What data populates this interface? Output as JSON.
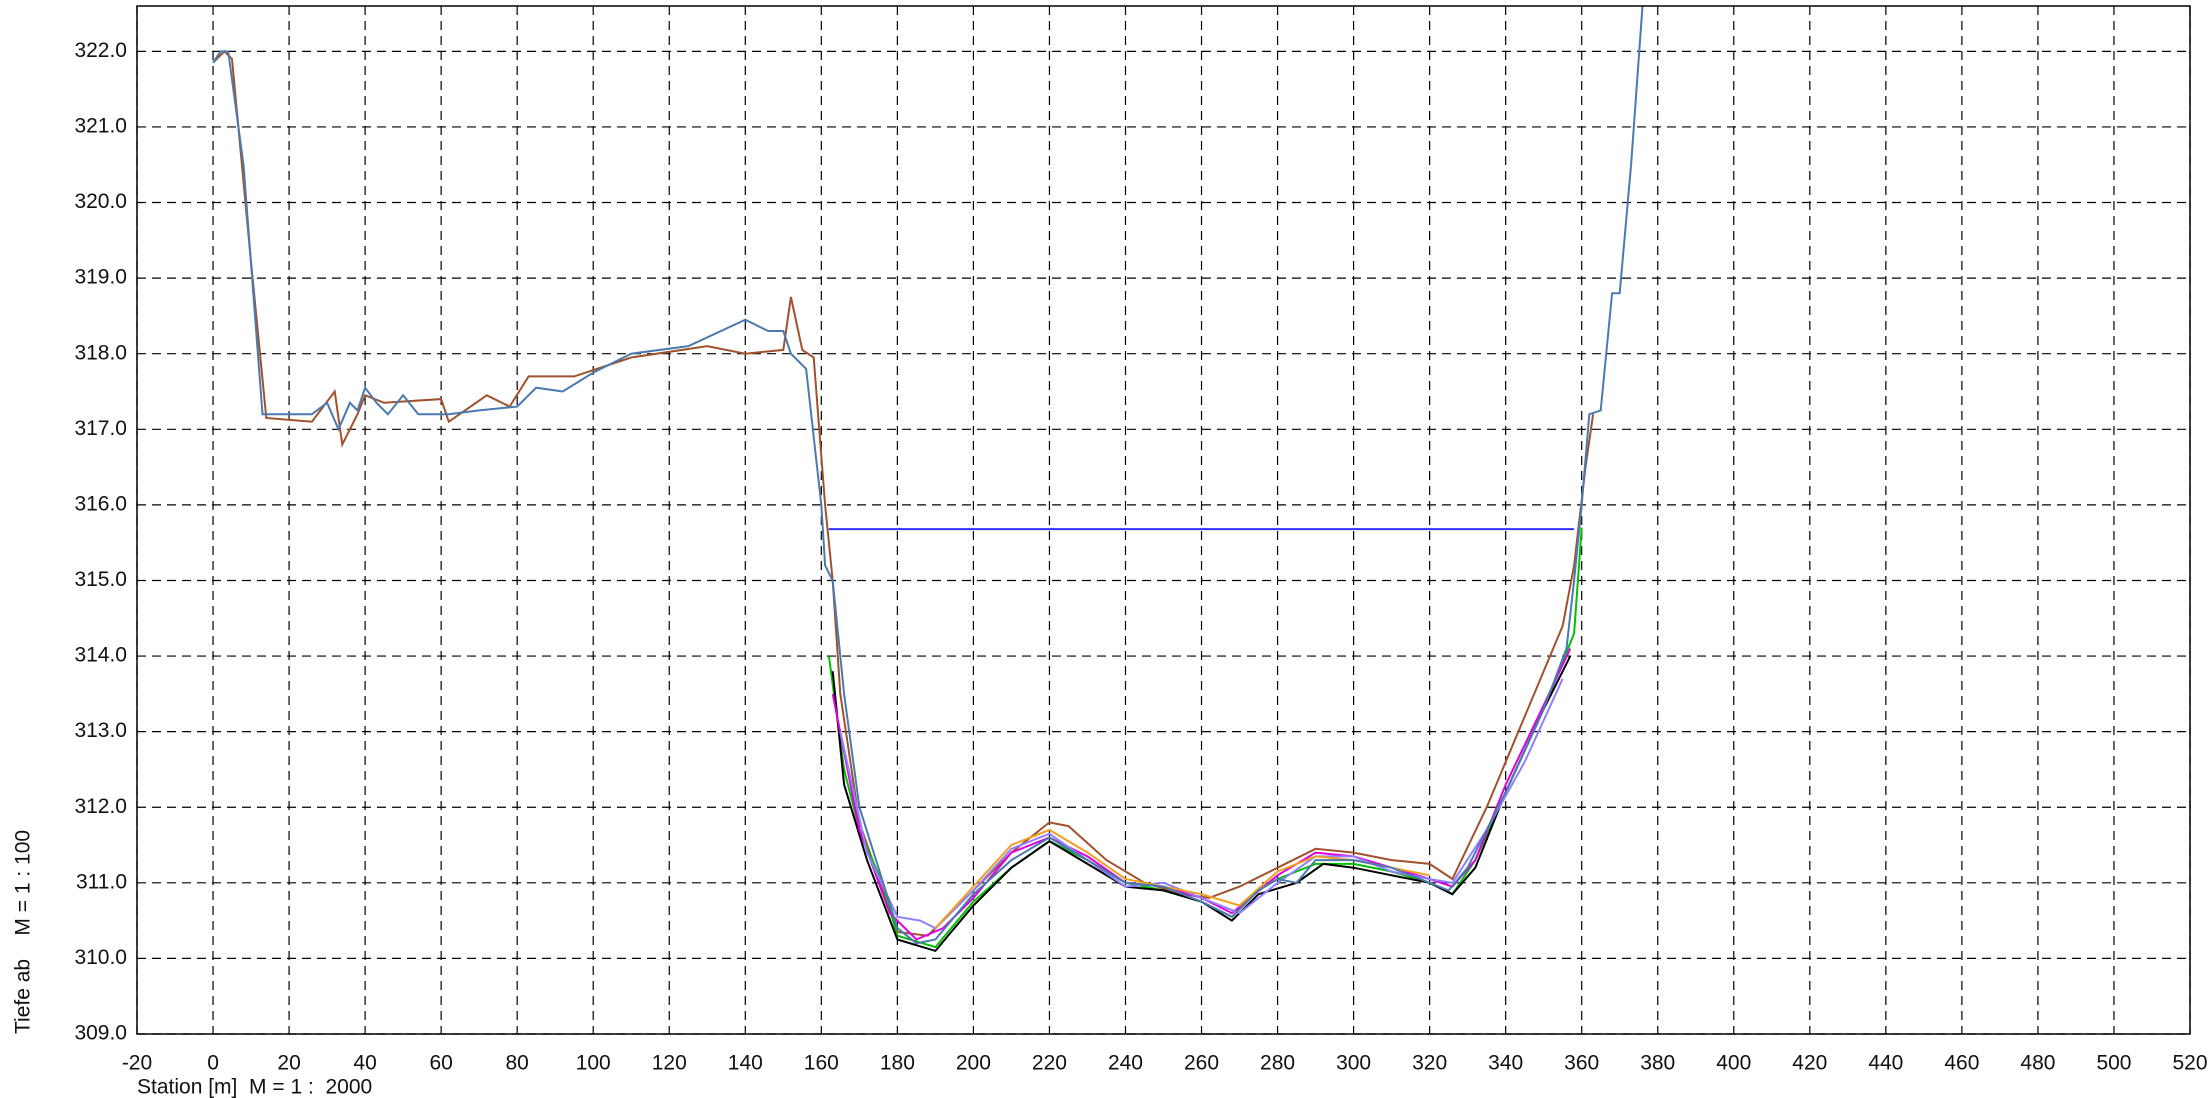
{
  "chart_data": {
    "type": "line",
    "x_label": "Station [m]  M = 1 :  2000",
    "y_label": "Tiefe ab    M = 1 : 100",
    "xlim": [
      -20,
      520
    ],
    "ylim": [
      309,
      322.6
    ],
    "xticks": [
      -20,
      0,
      20,
      40,
      60,
      80,
      100,
      120,
      140,
      160,
      180,
      200,
      220,
      240,
      260,
      280,
      300,
      320,
      340,
      360,
      380,
      400,
      420,
      440,
      460,
      480,
      500,
      520
    ],
    "yticks": [
      {
        "value": 309,
        "label": "309.0"
      },
      {
        "value": 310,
        "label": "310.0"
      },
      {
        "value": 311,
        "label": "311.0"
      },
      {
        "value": 312,
        "label": "312.0"
      },
      {
        "value": 313,
        "label": "313.0"
      },
      {
        "value": 314,
        "label": "314.0"
      },
      {
        "value": 315,
        "label": "315.0"
      },
      {
        "value": 316,
        "label": "316.0"
      },
      {
        "value": 317,
        "label": "317.0"
      },
      {
        "value": 318,
        "label": "318.0"
      },
      {
        "value": 319,
        "label": "319.0"
      },
      {
        "value": 320,
        "label": "320.0"
      },
      {
        "value": 321,
        "label": "321.0"
      },
      {
        "value": 322,
        "label": "322.0"
      }
    ],
    "grid": true,
    "series": [
      {
        "color": "#a0522d",
        "x": [
          0,
          3,
          5,
          10,
          14,
          26,
          32,
          34,
          38,
          40,
          45,
          60,
          62,
          72,
          78,
          83,
          95,
          110,
          130,
          140,
          150,
          152,
          155,
          158,
          161,
          163,
          165,
          170,
          180,
          188,
          200,
          210,
          220,
          225,
          235,
          245,
          255,
          262,
          270,
          280,
          290,
          300,
          310,
          320,
          326,
          335,
          345,
          355,
          358,
          361,
          363
        ],
        "values": [
          321.85,
          322.0,
          321.9,
          319.2,
          317.15,
          317.1,
          317.5,
          316.8,
          317.2,
          317.45,
          317.35,
          317.4,
          317.1,
          317.45,
          317.3,
          317.7,
          317.7,
          317.95,
          318.1,
          318.0,
          318.05,
          318.75,
          318.05,
          317.95,
          316.0,
          315.0,
          313.5,
          311.8,
          310.35,
          310.3,
          310.9,
          311.4,
          311.8,
          311.75,
          311.3,
          311.0,
          310.85,
          310.8,
          310.95,
          311.2,
          311.45,
          311.4,
          311.3,
          311.25,
          311.05,
          312.0,
          313.2,
          314.4,
          315.2,
          316.5,
          317.2
        ]
      },
      {
        "color": "#00c000",
        "x": [
          162,
          166,
          170,
          176,
          180,
          190,
          200,
          210,
          220,
          230,
          240,
          250,
          260,
          268,
          275,
          280,
          290,
          300,
          310,
          320,
          326,
          332,
          340,
          350,
          358,
          360
        ],
        "values": [
          314.0,
          312.5,
          311.7,
          311.0,
          310.3,
          310.15,
          310.75,
          311.2,
          311.55,
          311.3,
          311.0,
          310.9,
          310.75,
          310.55,
          310.9,
          311.05,
          311.25,
          311.25,
          311.15,
          311.0,
          310.85,
          311.3,
          312.2,
          313.3,
          314.3,
          315.7
        ]
      },
      {
        "color": "#000000",
        "x": [
          163,
          166,
          172,
          180,
          190,
          200,
          210,
          220,
          230,
          240,
          250,
          260,
          268,
          275,
          285,
          292,
          300,
          310,
          320,
          326,
          332,
          340,
          350,
          357
        ],
        "values": [
          313.8,
          312.3,
          311.3,
          310.25,
          310.1,
          310.7,
          311.2,
          311.55,
          311.25,
          310.95,
          310.9,
          310.75,
          310.5,
          310.85,
          311.0,
          311.25,
          311.2,
          311.1,
          311.0,
          310.85,
          311.2,
          312.2,
          313.3,
          314.0
        ]
      },
      {
        "color": "#e000e0",
        "x": [
          163,
          170,
          178,
          185,
          192,
          200,
          210,
          220,
          230,
          240,
          250,
          260,
          268,
          280,
          290,
          300,
          310,
          320,
          326,
          332,
          340,
          350,
          357
        ],
        "values": [
          313.5,
          311.7,
          310.6,
          310.25,
          310.4,
          310.8,
          311.4,
          311.6,
          311.35,
          311.0,
          310.95,
          310.8,
          310.6,
          311.1,
          311.4,
          311.35,
          311.2,
          311.05,
          310.95,
          311.3,
          312.3,
          313.35,
          314.1
        ]
      },
      {
        "color": "#9080ff",
        "x": [
          165,
          172,
          180,
          186,
          190,
          200,
          210,
          220,
          230,
          240,
          250,
          260,
          270,
          280,
          290,
          300,
          310,
          320,
          326,
          335,
          345,
          355
        ],
        "values": [
          313.0,
          311.4,
          310.55,
          310.5,
          310.4,
          310.9,
          311.45,
          311.65,
          311.3,
          310.95,
          311.0,
          310.8,
          310.6,
          311.0,
          311.35,
          311.35,
          311.15,
          311.05,
          311.0,
          311.7,
          312.6,
          313.7
        ]
      },
      {
        "color": "#f0a020",
        "x": [
          190,
          200,
          210,
          220,
          230,
          240,
          250,
          260,
          270,
          280,
          290,
          300,
          310,
          320
        ],
        "values": [
          310.4,
          310.95,
          311.5,
          311.7,
          311.4,
          311.05,
          310.95,
          310.85,
          310.7,
          311.15,
          311.35,
          311.3,
          311.2,
          311.1
        ]
      },
      {
        "color": "#4a7ab0",
        "x": [
          0,
          2,
          4,
          8,
          13,
          20,
          26,
          30,
          33,
          36,
          38,
          40,
          43,
          46,
          50,
          54,
          62,
          70,
          80,
          85,
          92,
          100,
          110,
          125,
          140,
          146,
          150,
          152,
          156,
          160,
          161,
          163,
          166,
          170,
          175,
          180,
          185,
          190,
          200,
          210,
          220,
          230,
          240,
          250,
          260,
          268,
          275,
          280,
          285,
          290,
          300,
          310,
          320,
          325,
          330,
          340,
          350,
          356,
          358,
          360,
          362,
          365,
          368,
          370,
          373,
          376
        ],
        "values": [
          321.85,
          322.0,
          322.0,
          320.5,
          317.2,
          317.2,
          317.2,
          317.35,
          317.0,
          317.35,
          317.25,
          317.55,
          317.35,
          317.2,
          317.45,
          317.2,
          317.2,
          317.25,
          317.3,
          317.55,
          317.5,
          317.75,
          318.0,
          318.1,
          318.45,
          318.3,
          318.3,
          318.0,
          317.8,
          316.0,
          315.2,
          315.0,
          313.5,
          312.0,
          311.2,
          310.4,
          310.2,
          310.25,
          310.85,
          311.3,
          311.6,
          311.3,
          311.0,
          310.95,
          310.75,
          310.55,
          310.9,
          311.05,
          311.0,
          311.3,
          311.3,
          311.2,
          311.0,
          310.9,
          311.2,
          312.2,
          313.3,
          314.1,
          315.0,
          316.0,
          317.2,
          317.25,
          318.8,
          318.8,
          320.5,
          322.6
        ]
      },
      {
        "color": "#3030ff",
        "x": [
          162,
          358
        ],
        "values": [
          315.68,
          315.68
        ]
      }
    ]
  }
}
